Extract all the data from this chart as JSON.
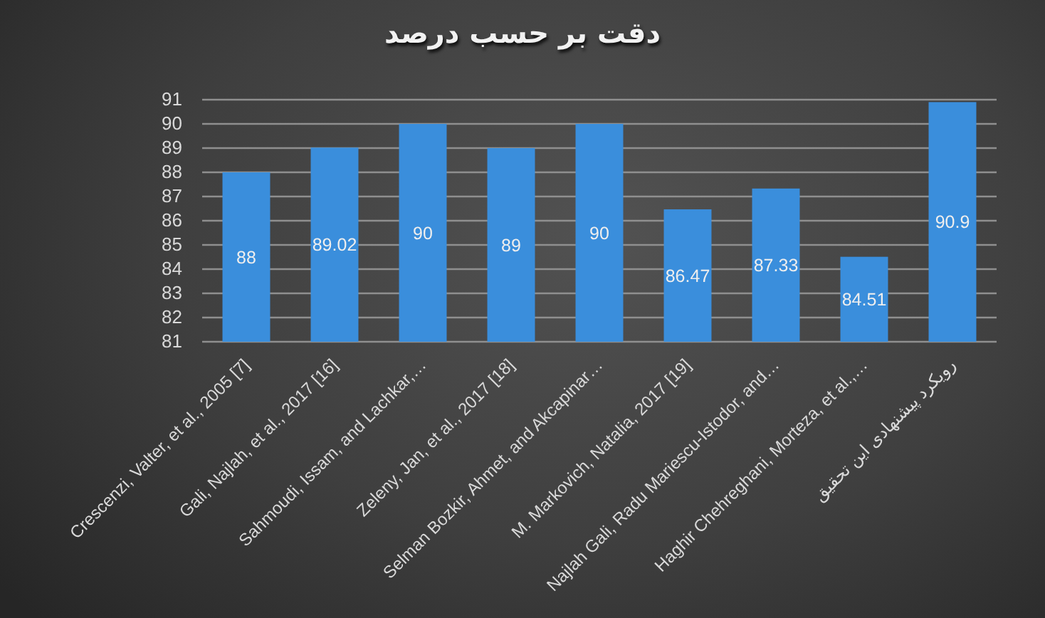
{
  "chart_data": {
    "type": "bar",
    "title": "دقت بر حسب درصد",
    "categories": [
      "Crescenzi, Valter, et al., 2005 [7]",
      "Gali, Najlah, et al., 2017 [16]",
      "Sahmoudi, Issam, and Lachkar,…",
      "Zeleny, Jan, et al., 2017 [18]",
      "Selman Bozkir, Ahmet, and Akcapinar…",
      "M. Markovich, Natalia, 2017 [19]",
      "Najlah Gali, Radu Mariescu-Istodor, and…",
      "Haghir Chehreghani, Morteza, et al.,…",
      "رویکرد پیشنهادی این تحقیق"
    ],
    "values": [
      88,
      89.02,
      90,
      89,
      90,
      86.47,
      87.33,
      84.51,
      90.9
    ],
    "color": "#3a8edc",
    "ylim": [
      81,
      91
    ],
    "yticks": [
      81,
      82,
      83,
      84,
      85,
      86,
      87,
      88,
      89,
      90,
      91
    ],
    "grid": true,
    "data_labels": true
  }
}
